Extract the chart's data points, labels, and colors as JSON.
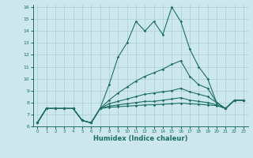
{
  "xlabel": "Humidex (Indice chaleur)",
  "xlim": [
    -0.5,
    23.5
  ],
  "ylim": [
    6,
    16.2
  ],
  "yticks": [
    6,
    7,
    8,
    9,
    10,
    11,
    12,
    13,
    14,
    15,
    16
  ],
  "xticks": [
    0,
    1,
    2,
    3,
    4,
    5,
    6,
    7,
    8,
    9,
    10,
    11,
    12,
    13,
    14,
    15,
    16,
    17,
    18,
    19,
    20,
    21,
    22,
    23
  ],
  "bg_color": "#cce8ec",
  "grid_color": "#aacdd3",
  "line_color": "#1e6e64",
  "series": [
    [
      6.3,
      7.5,
      7.5,
      7.5,
      7.5,
      6.5,
      6.3,
      7.5,
      9.5,
      11.8,
      13.0,
      14.8,
      14.0,
      14.8,
      13.7,
      16.0,
      14.8,
      12.5,
      11.0,
      10.0,
      8.0,
      7.5,
      8.2,
      8.2
    ],
    [
      6.3,
      7.5,
      7.5,
      7.5,
      7.5,
      6.5,
      6.3,
      7.5,
      8.2,
      8.8,
      9.3,
      9.8,
      10.2,
      10.5,
      10.8,
      11.2,
      11.5,
      10.2,
      9.5,
      9.2,
      8.0,
      7.5,
      8.2,
      8.2
    ],
    [
      6.3,
      7.5,
      7.5,
      7.5,
      7.5,
      6.5,
      6.3,
      7.5,
      7.9,
      8.1,
      8.3,
      8.5,
      8.7,
      8.8,
      8.9,
      9.0,
      9.2,
      8.9,
      8.7,
      8.5,
      8.0,
      7.5,
      8.2,
      8.2
    ],
    [
      6.3,
      7.5,
      7.5,
      7.5,
      7.5,
      6.5,
      6.3,
      7.5,
      7.7,
      7.8,
      7.9,
      8.0,
      8.1,
      8.1,
      8.2,
      8.3,
      8.4,
      8.2,
      8.1,
      8.0,
      7.8,
      7.5,
      8.2,
      8.2
    ],
    [
      6.3,
      7.5,
      7.5,
      7.5,
      7.5,
      6.5,
      6.3,
      7.5,
      7.6,
      7.65,
      7.7,
      7.75,
      7.8,
      7.82,
      7.85,
      7.9,
      7.95,
      7.9,
      7.85,
      7.8,
      7.75,
      7.5,
      8.2,
      8.2
    ]
  ]
}
